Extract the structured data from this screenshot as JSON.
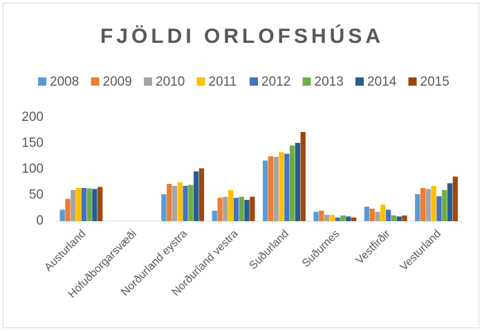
{
  "chart_data": {
    "type": "bar",
    "title": "FJÖLDI ORLOFSHÚSA",
    "categories": [
      "Austurland",
      "Höfuðborgarsvæði",
      "Norðurland eystra",
      "Norðurland vestra",
      "Suðurland",
      "Suðurnes",
      "Vestfirðir",
      "Vesturland"
    ],
    "series": [
      {
        "name": "2008",
        "color": "#5b9bd5",
        "values": [
          22,
          0,
          52,
          20,
          117,
          18,
          28,
          52
        ]
      },
      {
        "name": "2009",
        "color": "#ed7d31",
        "values": [
          43,
          0,
          72,
          45,
          125,
          20,
          24,
          64
        ]
      },
      {
        "name": "2010",
        "color": "#a5a5a5",
        "values": [
          60,
          0,
          68,
          47,
          124,
          12,
          18,
          62
        ]
      },
      {
        "name": "2011",
        "color": "#ffc000",
        "values": [
          64,
          0,
          75,
          60,
          133,
          12,
          32,
          68
        ]
      },
      {
        "name": "2012",
        "color": "#4472c4",
        "values": [
          64,
          0,
          68,
          45,
          130,
          7,
          22,
          48
        ]
      },
      {
        "name": "2013",
        "color": "#70ad47",
        "values": [
          63,
          0,
          70,
          47,
          146,
          11,
          11,
          60
        ]
      },
      {
        "name": "2014",
        "color": "#255e91",
        "values": [
          62,
          0,
          96,
          41,
          151,
          9,
          9,
          73
        ]
      },
      {
        "name": "2015",
        "color": "#9e480e",
        "values": [
          66,
          0,
          102,
          47,
          172,
          7,
          11,
          86
        ]
      }
    ],
    "ylim": [
      0,
      200
    ],
    "yticks": [
      0,
      50,
      100,
      150,
      200
    ],
    "legend": "top"
  }
}
